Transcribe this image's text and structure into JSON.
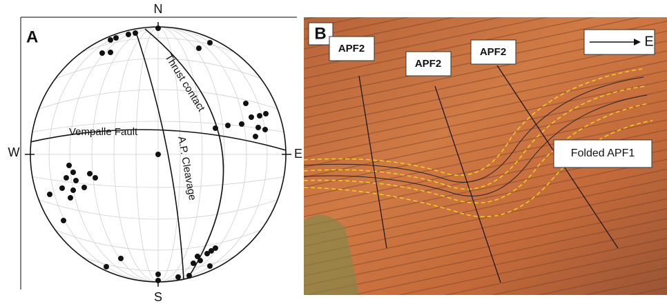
{
  "panel_a": {
    "label": "A",
    "north": "N",
    "south": "S",
    "east": "E",
    "west": "W",
    "labels": {
      "thrust": "Thrust contact",
      "fault": "Vempalle Fault",
      "cleavage": "A.P. Cleavage"
    }
  },
  "panel_b": {
    "label": "B",
    "direction": "E",
    "apf2": [
      "APF2",
      "APF2",
      "APF2"
    ],
    "folded": "Folded APF1"
  }
}
